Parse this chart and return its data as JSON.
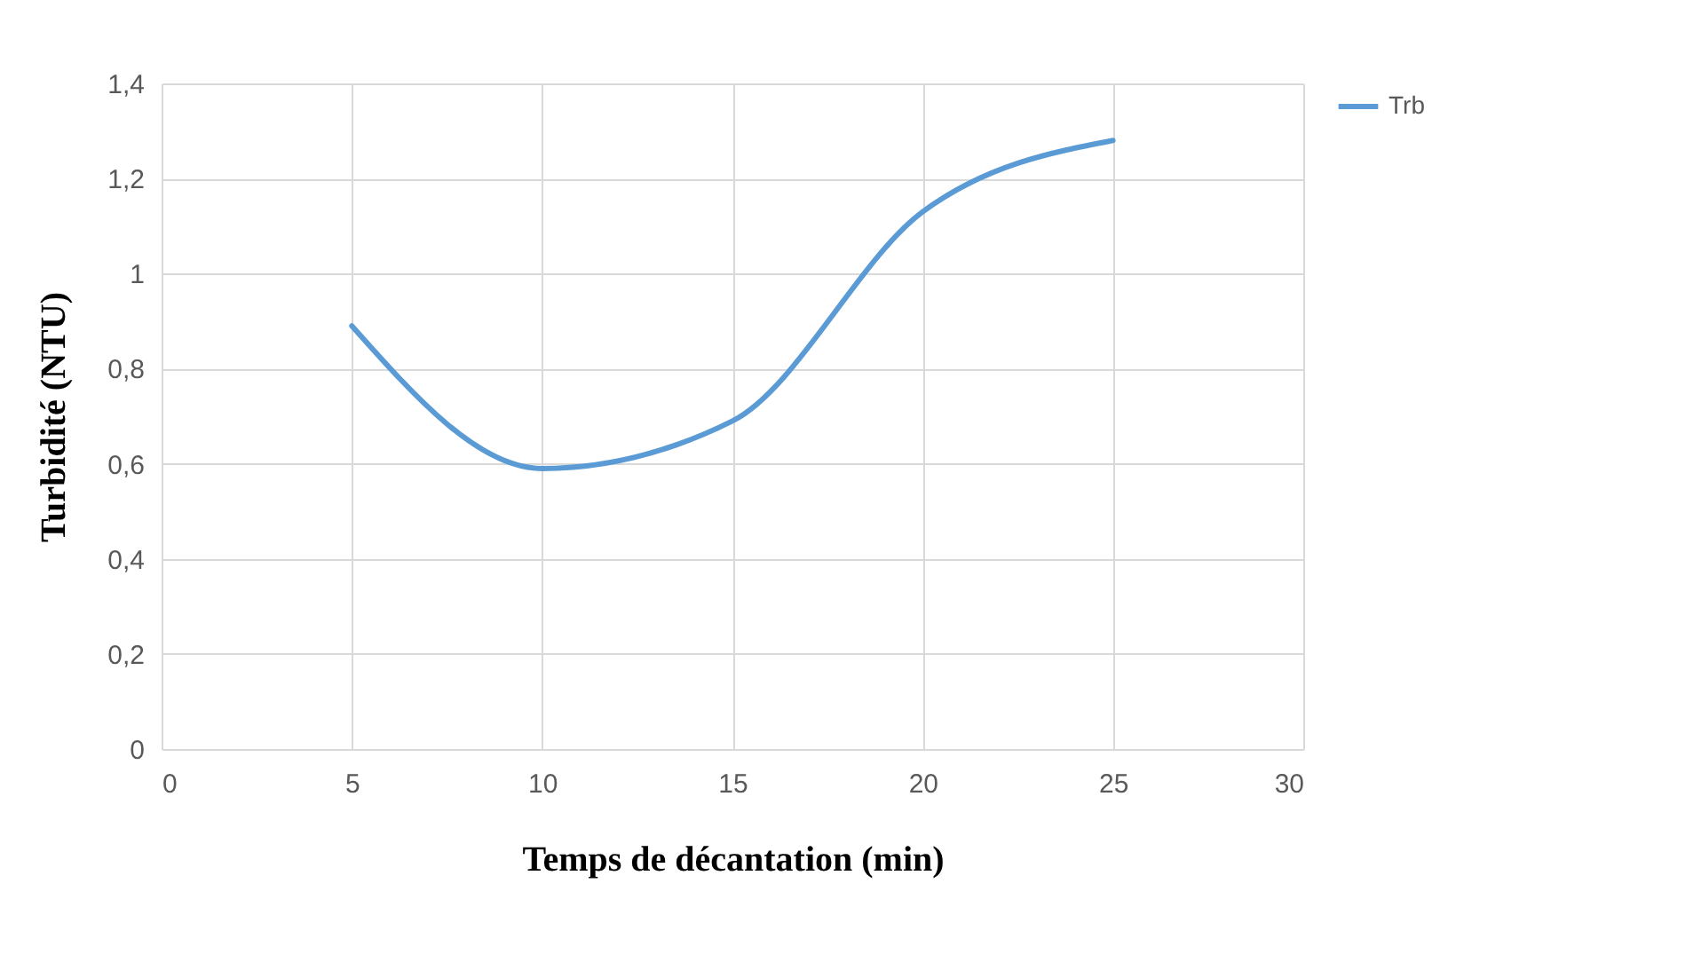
{
  "chart_data": {
    "type": "line",
    "xlabel": "Temps de décantation  (min)",
    "ylabel": "Turbidité (NTU)",
    "x": [
      5,
      10,
      15,
      20,
      25
    ],
    "series": [
      {
        "name": "Trb",
        "color": "#5b9bd5",
        "values": [
          0.89,
          0.59,
          0.69,
          1.13,
          1.28
        ]
      }
    ],
    "xlim": [
      0,
      30
    ],
    "xticks": [
      0,
      5,
      10,
      15,
      20,
      25,
      30
    ],
    "ylim": [
      0,
      1.4
    ],
    "yticks": [
      0,
      {
        "value": 0.2,
        "label": "0,2"
      },
      {
        "value": 0.4,
        "label": "0,4"
      },
      {
        "value": 0.6,
        "label": "0,6"
      },
      {
        "value": 0.8,
        "label": "0,8"
      },
      1,
      {
        "value": 1.2,
        "label": "1,2"
      },
      {
        "value": 1.4,
        "label": "1,4"
      }
    ],
    "grid": true,
    "legend": "right",
    "marker": "none",
    "line_style": "solid"
  }
}
